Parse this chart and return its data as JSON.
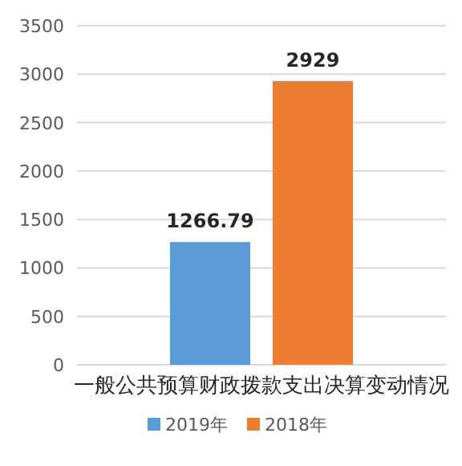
{
  "chart_data": {
    "type": "bar",
    "categories": [
      "一般公共预算财政拨款支出决算变动情况"
    ],
    "series": [
      {
        "name": "2019年",
        "color": "#5b9bd5",
        "values": [
          1266.79
        ]
      },
      {
        "name": "2018年",
        "color": "#ed7d31",
        "values": [
          2929
        ]
      }
    ],
    "ylim": [
      0,
      3500
    ],
    "yticks": [
      0,
      500,
      1000,
      1500,
      2000,
      2500,
      3000,
      3500
    ],
    "grid": "y",
    "legend": "bottom",
    "data_labels": true
  }
}
